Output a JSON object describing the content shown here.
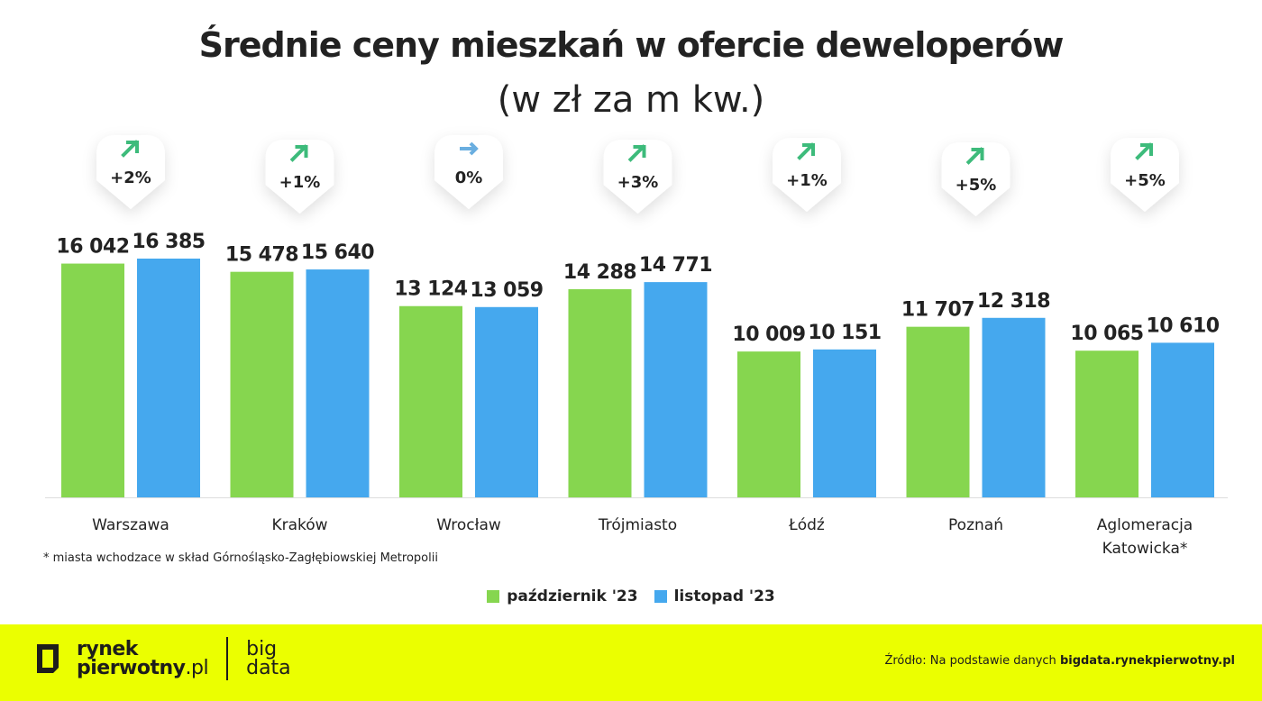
{
  "chart_data": {
    "type": "bar",
    "title": "Średnie ceny mieszkań w ofercie deweloperów",
    "subtitle": "(w zł za m kw.)",
    "categories": [
      "Warszawa",
      "Kraków",
      "Wrocław",
      "Trójmiasto",
      "Łódź",
      "Poznań",
      "Aglomeracja Katowicka*"
    ],
    "series": [
      {
        "name": "październik '23",
        "color": "#86d64f",
        "values": [
          16042,
          15478,
          13124,
          14288,
          10009,
          11707,
          10065
        ],
        "labels": [
          "16 042",
          "15 478",
          "13 124",
          "14 288",
          "10 009",
          "11 707",
          "10 065"
        ]
      },
      {
        "name": "listopad '23",
        "color": "#45a8ee",
        "values": [
          16385,
          15640,
          13059,
          14771,
          10151,
          12318,
          10610
        ],
        "labels": [
          "16 385",
          "15 640",
          "13 059",
          "14 771",
          "10 151",
          "12 318",
          "10 610"
        ]
      }
    ],
    "changes": [
      {
        "label": "+2%",
        "direction": "up"
      },
      {
        "label": "+1%",
        "direction": "up"
      },
      {
        "label": "0%",
        "direction": "flat"
      },
      {
        "label": "+3%",
        "direction": "up"
      },
      {
        "label": "+1%",
        "direction": "up"
      },
      {
        "label": "+5%",
        "direction": "up"
      },
      {
        "label": "+5%",
        "direction": "up"
      }
    ],
    "arrow_colors": {
      "up": "#3dbb7b",
      "flat": "#6aaee0"
    },
    "ylim": [
      0,
      16385
    ],
    "grid": false,
    "legend_position": "bottom"
  },
  "note": "* miasta wchodzace w skład Górnośląsko-Zagłębiowskiej Metropolii",
  "footer": {
    "logo_line1": "rynek",
    "logo_line2": "pierwotny",
    "logo_tld": ".pl",
    "big1": "big",
    "big2": "data",
    "source_prefix": "Źródło: Na podstawie danych ",
    "source_site": "bigdata.rynekpierwotny.pl",
    "background": "#ebff00"
  }
}
